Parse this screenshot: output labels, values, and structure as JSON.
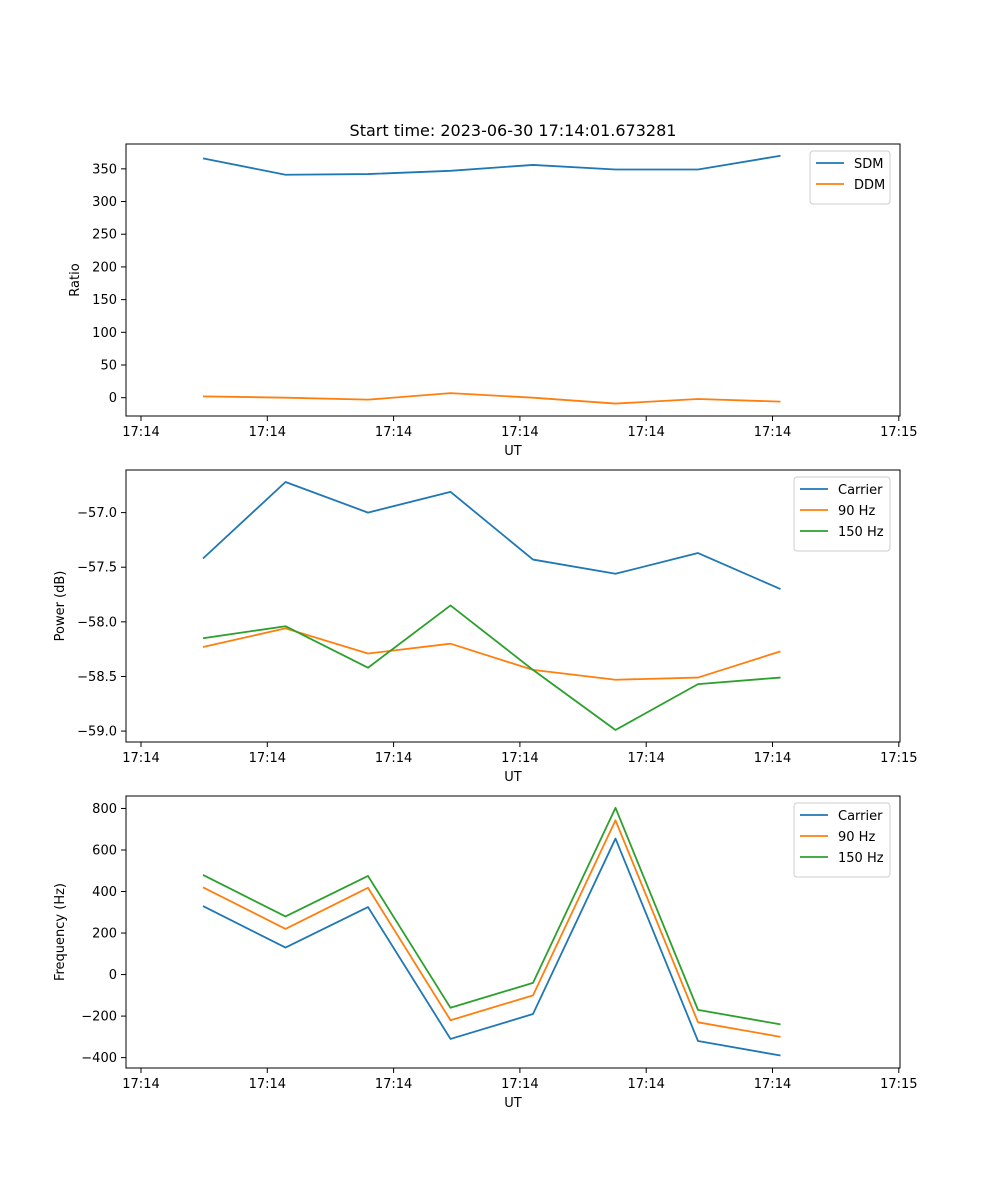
{
  "title": "Start time: 2023-06-30 17:14:01.673281",
  "chart_data": [
    {
      "type": "line",
      "xlabel": "UT",
      "ylabel": "Ratio",
      "x_tick_labels": [
        "17:14",
        "17:14",
        "17:14",
        "17:14",
        "17:14",
        "17:14",
        "17:15"
      ],
      "yticks": [
        0,
        50,
        100,
        150,
        200,
        250,
        300,
        350
      ],
      "ylim": [
        -28,
        388
      ],
      "legend_position": "top-right",
      "grid": false,
      "series": [
        {
          "name": "SDM",
          "color": "#1f77b4",
          "values": [
            366,
            341,
            342,
            347,
            356,
            349,
            349,
            370
          ]
        },
        {
          "name": "DDM",
          "color": "#ff7f0e",
          "values": [
            2,
            0,
            -3,
            7,
            0,
            -9,
            -2,
            -6
          ]
        }
      ]
    },
    {
      "type": "line",
      "xlabel": "UT",
      "ylabel": "Power (dB)",
      "x_tick_labels": [
        "17:14",
        "17:14",
        "17:14",
        "17:14",
        "17:14",
        "17:14",
        "17:15"
      ],
      "yticks": [
        -59.0,
        -58.5,
        -58.0,
        -57.5,
        -57.0
      ],
      "ytick_labels": [
        "−59.0",
        "−58.5",
        "−58.0",
        "−57.5",
        "−57.0"
      ],
      "ylim": [
        -59.1,
        -56.61
      ],
      "legend_position": "top-right",
      "grid": false,
      "series": [
        {
          "name": "Carrier",
          "color": "#1f77b4",
          "values": [
            -57.42,
            -56.72,
            -57.0,
            -56.81,
            -57.43,
            -57.56,
            -57.37,
            -57.7
          ]
        },
        {
          "name": "90 Hz",
          "color": "#ff7f0e",
          "values": [
            -58.23,
            -58.06,
            -58.29,
            -58.2,
            -58.44,
            -58.53,
            -58.51,
            -58.27
          ]
        },
        {
          "name": "150 Hz",
          "color": "#2ca02c",
          "values": [
            -58.15,
            -58.04,
            -58.42,
            -57.85,
            -58.44,
            -58.99,
            -58.57,
            -58.51
          ]
        }
      ]
    },
    {
      "type": "line",
      "xlabel": "UT",
      "ylabel": "Frequency (Hz)",
      "x_tick_labels": [
        "17:14",
        "17:14",
        "17:14",
        "17:14",
        "17:14",
        "17:14",
        "17:15"
      ],
      "yticks": [
        -400,
        -200,
        0,
        200,
        400,
        600,
        800
      ],
      "ytick_labels": [
        "−400",
        "−200",
        "0",
        "200",
        "400",
        "600",
        "800"
      ],
      "ylim": [
        -450,
        860
      ],
      "legend_position": "top-right",
      "grid": false,
      "series": [
        {
          "name": "Carrier",
          "color": "#1f77b4",
          "values": [
            330,
            130,
            325,
            -310,
            -190,
            655,
            -320,
            -390
          ]
        },
        {
          "name": "90 Hz",
          "color": "#ff7f0e",
          "values": [
            420,
            220,
            418,
            -220,
            -100,
            743,
            -230,
            -300
          ]
        },
        {
          "name": "150 Hz",
          "color": "#2ca02c",
          "values": [
            480,
            280,
            475,
            -160,
            -40,
            803,
            -170,
            -240
          ]
        }
      ]
    }
  ]
}
